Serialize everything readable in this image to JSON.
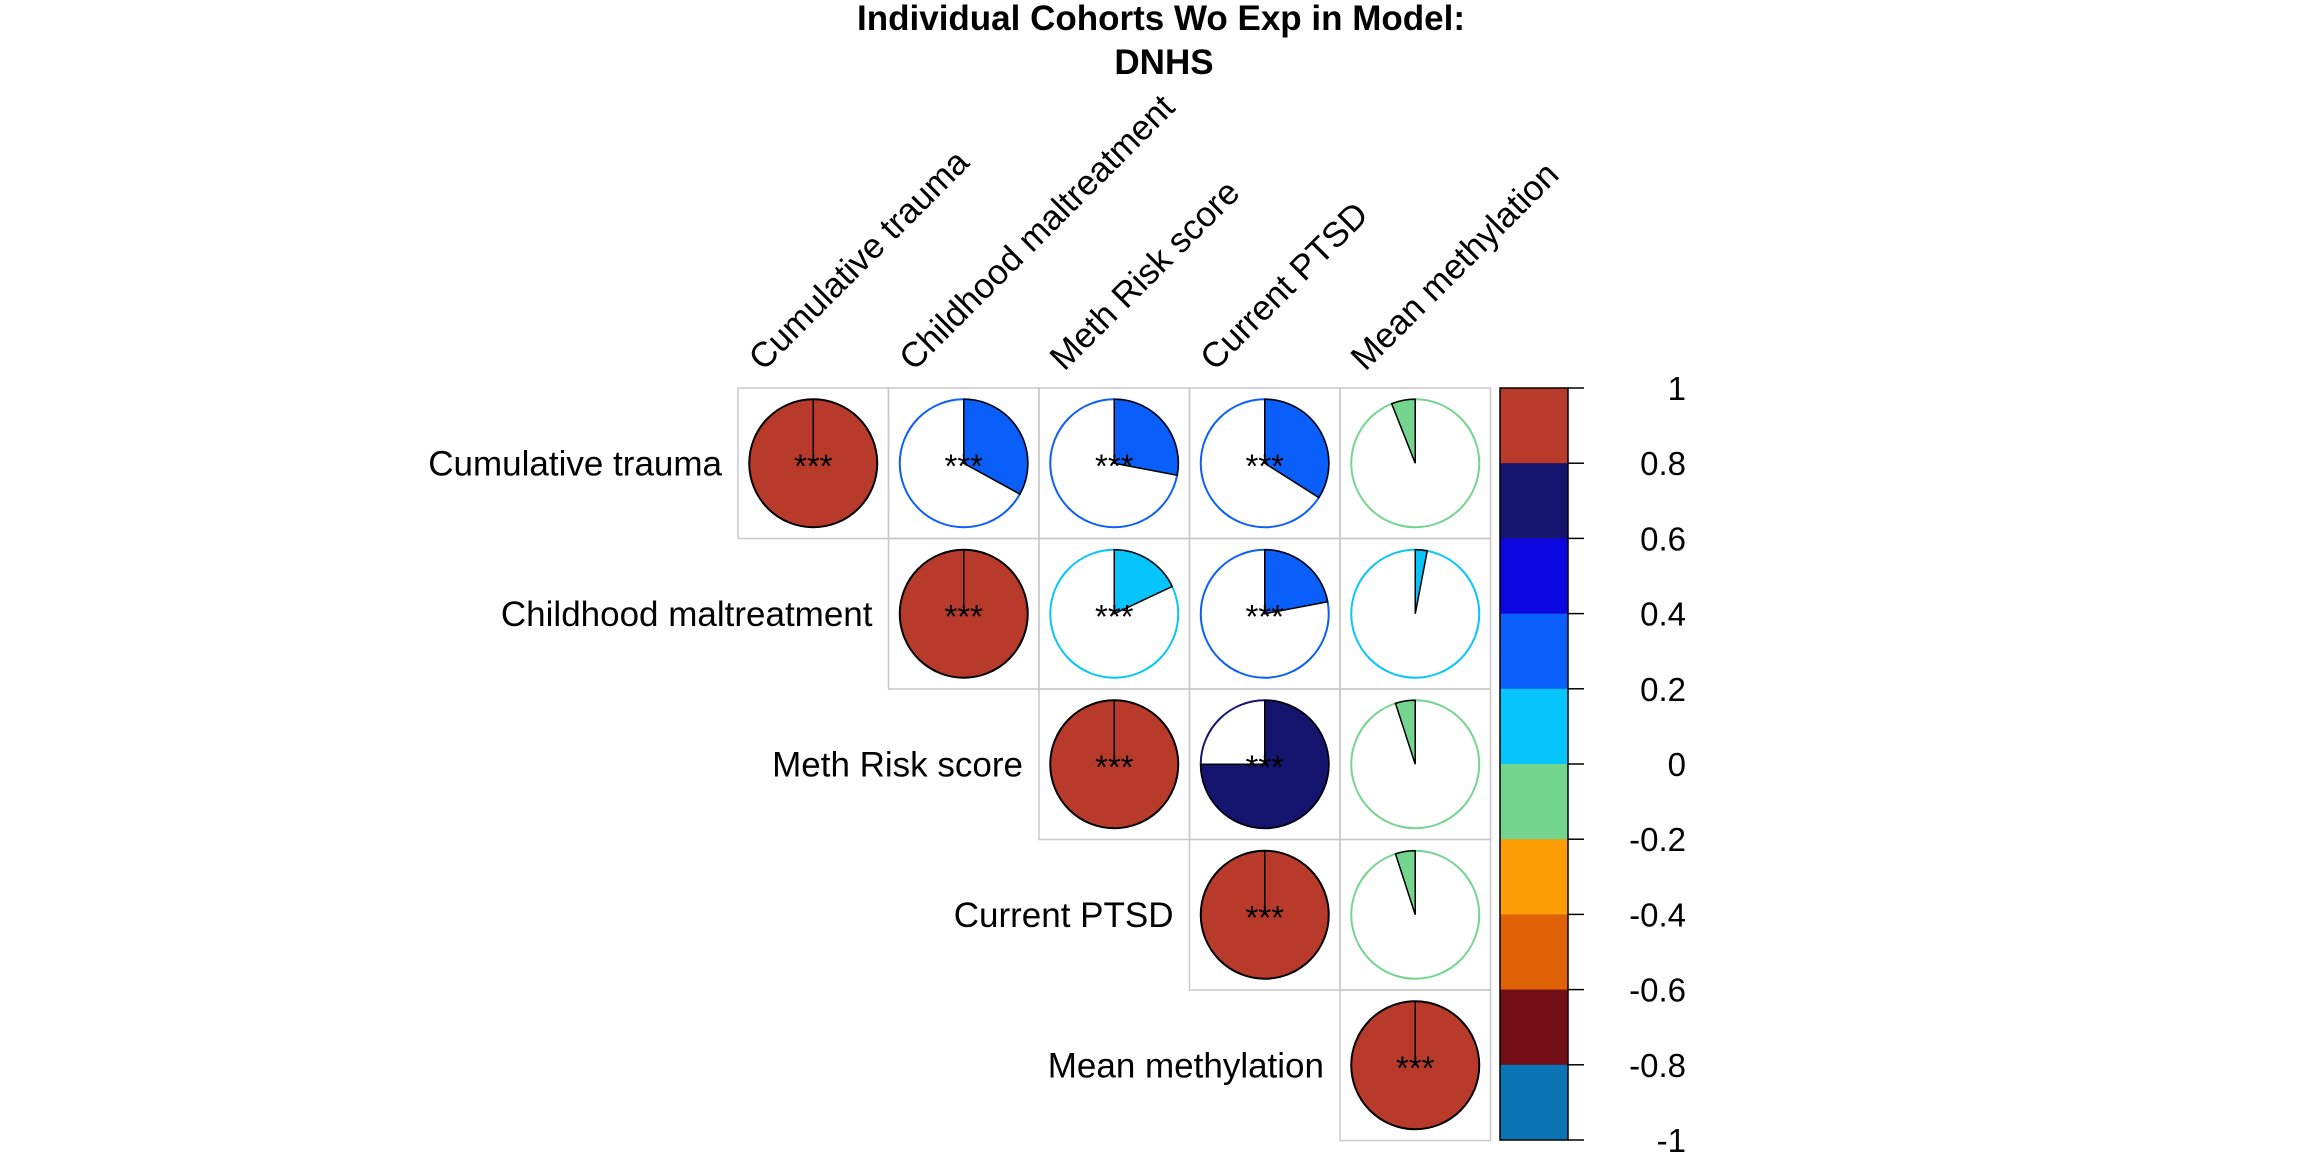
{
  "chart_data": {
    "type": "heatmap",
    "subtype": "correlation-pie-upper-triangle",
    "title": "Individual Cohorts Wo Exp in Model:",
    "subtitle": "DNHS",
    "variables": [
      "Cumulative trauma",
      "Childhood maltreatment",
      "Meth Risk score",
      "Current PTSD",
      "Mean methylation"
    ],
    "cells": [
      {
        "row": 0,
        "col": 0,
        "value": 1.0,
        "stars": "***"
      },
      {
        "row": 0,
        "col": 1,
        "value": 0.33,
        "stars": "***"
      },
      {
        "row": 0,
        "col": 2,
        "value": 0.28,
        "stars": "***"
      },
      {
        "row": 0,
        "col": 3,
        "value": 0.34,
        "stars": "***"
      },
      {
        "row": 0,
        "col": 4,
        "value": -0.06,
        "stars": ""
      },
      {
        "row": 1,
        "col": 1,
        "value": 1.0,
        "stars": "***"
      },
      {
        "row": 1,
        "col": 2,
        "value": 0.18,
        "stars": "***"
      },
      {
        "row": 1,
        "col": 3,
        "value": 0.22,
        "stars": "***"
      },
      {
        "row": 1,
        "col": 4,
        "value": 0.03,
        "stars": ""
      },
      {
        "row": 2,
        "col": 2,
        "value": 1.0,
        "stars": "***"
      },
      {
        "row": 2,
        "col": 3,
        "value": 0.75,
        "stars": "***"
      },
      {
        "row": 2,
        "col": 4,
        "value": -0.05,
        "stars": ""
      },
      {
        "row": 3,
        "col": 3,
        "value": 1.0,
        "stars": "***"
      },
      {
        "row": 3,
        "col": 4,
        "value": -0.05,
        "stars": ""
      },
      {
        "row": 4,
        "col": 4,
        "value": 1.0,
        "stars": "***"
      }
    ],
    "colorbar": {
      "range": [
        -1,
        1
      ],
      "ticks": [
        "1",
        "0.8",
        "0.6",
        "0.4",
        "0.2",
        "0",
        "-0.2",
        "-0.4",
        "-0.6",
        "-0.8",
        "-1"
      ],
      "bins_top_to_bottom": [
        "#B83A2A",
        "#15146F",
        "#0C06E0",
        "#0A5EFA",
        "#06C5FC",
        "#73D58E",
        "#FE9E06",
        "#E06206",
        "#720F16",
        "#0B74B5"
      ]
    }
  }
}
